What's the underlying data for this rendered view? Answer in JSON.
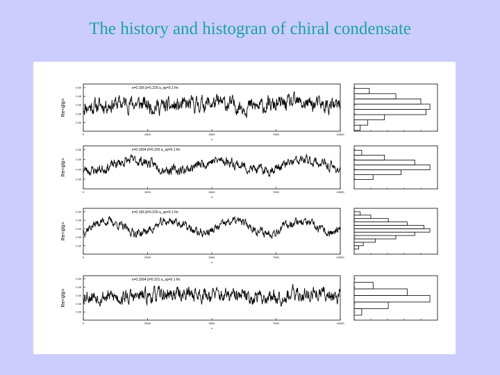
{
  "slide": {
    "title": "The history and histogran of chiral condensate"
  },
  "colors": {
    "background": "#ccccff",
    "title": "#1aa39a",
    "panel": "#ffffff",
    "ink": "#000000"
  },
  "chart_data": [
    {
      "type": "line",
      "panel": "history-1",
      "ylabel": "Re<ψ̄ψ>",
      "xlabel": "n",
      "annotation": "κ=0.156  β=5.220  a_sp=0.1 fm",
      "xlim": [
        0,
        10000
      ],
      "ylim": [
        0.25,
        0.52
      ],
      "x_ticks": [
        0,
        2500,
        5000,
        7500,
        10000
      ],
      "y_ticks": [
        0.3,
        0.35,
        0.4,
        0.45,
        0.5
      ],
      "series": [
        {
          "mean": 0.4,
          "noise": 0.035,
          "wave_amplitude": 0.01,
          "wave_periods": 3,
          "seed": 11
        }
      ]
    },
    {
      "type": "bar",
      "panel": "histogram-1",
      "orientation": "horizontal",
      "ylim": [
        0.25,
        0.52
      ],
      "bins": [
        0.27,
        0.3,
        0.33,
        0.36,
        0.39,
        0.42,
        0.45,
        0.48
      ],
      "counts": [
        8,
        18,
        40,
        95,
        100,
        88,
        55,
        20
      ],
      "xlim": [
        0,
        110
      ]
    },
    {
      "type": "line",
      "panel": "history-2",
      "ylabel": "Re<ψ̄ψ>",
      "xlabel": "n",
      "annotation": "κ=0.1564  β=5.220  a_sp=0.1 fm",
      "xlim": [
        0,
        10000
      ],
      "ylim": [
        0.3,
        0.52
      ],
      "x_ticks": [
        0,
        2500,
        5000,
        7500,
        10000
      ],
      "y_ticks": [
        0.35,
        0.4,
        0.45,
        0.5
      ],
      "series": [
        {
          "mean": 0.42,
          "noise": 0.02,
          "wave_amplitude": 0.025,
          "wave_periods": 3,
          "seed": 23
        }
      ]
    },
    {
      "type": "bar",
      "panel": "histogram-2",
      "orientation": "horizontal",
      "ylim": [
        0.3,
        0.52
      ],
      "bins": [
        0.36,
        0.385,
        0.41,
        0.435,
        0.46,
        0.485
      ],
      "counts": [
        25,
        62,
        100,
        80,
        40,
        10
      ],
      "xlim": [
        0,
        110
      ]
    },
    {
      "type": "line",
      "panel": "history-3",
      "ylabel": "Re<ψ̄ψ>",
      "xlabel": "n",
      "annotation": "κ=0.156  β=5.220  a_sp=0.1 fm",
      "xlim": [
        0,
        10000
      ],
      "ylim": [
        0.25,
        0.52
      ],
      "x_ticks": [
        0,
        2500,
        5000,
        7500,
        10000
      ],
      "y_ticks": [
        0.3,
        0.35,
        0.4,
        0.45,
        0.5
      ],
      "series": [
        {
          "mean": 0.41,
          "noise": 0.02,
          "wave_amplitude": 0.035,
          "wave_periods": 4,
          "seed": 37
        }
      ]
    },
    {
      "type": "bar",
      "panel": "histogram-3",
      "orientation": "horizontal",
      "ylim": [
        0.25,
        0.52
      ],
      "bins": [
        0.29,
        0.31,
        0.33,
        0.35,
        0.37,
        0.39,
        0.41,
        0.43,
        0.45,
        0.47,
        0.49
      ],
      "counts": [
        6,
        12,
        28,
        55,
        80,
        100,
        92,
        70,
        45,
        22,
        8
      ],
      "xlim": [
        0,
        110
      ]
    },
    {
      "type": "line",
      "panel": "history-4",
      "ylabel": "Re<ψ̄ψ>",
      "xlabel": "n",
      "annotation": "κ=0.1564  β=5.221  a_sp=0.1 fm",
      "xlim": [
        0,
        10000
      ],
      "ylim": [
        0.25,
        0.52
      ],
      "x_ticks": [
        0,
        2500,
        5000,
        7500,
        10000
      ],
      "y_ticks": [
        0.3,
        0.35,
        0.4,
        0.45,
        0.5
      ],
      "series": [
        {
          "mean": 0.4,
          "noise": 0.035,
          "wave_amplitude": 0.01,
          "wave_periods": 2,
          "seed": 53
        }
      ]
    },
    {
      "type": "bar",
      "panel": "histogram-4",
      "orientation": "horizontal",
      "ylim": [
        0.25,
        0.52
      ],
      "bins": [
        0.3,
        0.34,
        0.38,
        0.42,
        0.46
      ],
      "counts": [
        10,
        45,
        100,
        70,
        25
      ],
      "xlim": [
        0,
        110
      ]
    }
  ]
}
